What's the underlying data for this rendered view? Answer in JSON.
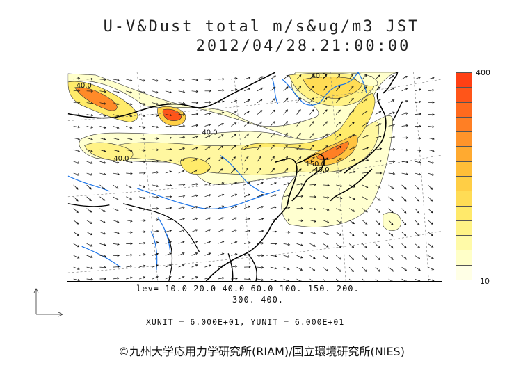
{
  "header": {
    "title": "U-V&Dust total m/s&ug/m3 JST",
    "datetime": "2012/04/28.21:00:00"
  },
  "colorbar": {
    "max_label": "400",
    "min_label": "10",
    "colors": [
      "#ffffe6",
      "#ffffc8",
      "#fffaa8",
      "#fff386",
      "#ffe96a",
      "#ffdc55",
      "#ffce45",
      "#ffbe38",
      "#ffaa30",
      "#ff942a",
      "#ff7f24",
      "#ff6a1e",
      "#ff5519",
      "#ff4014"
    ]
  },
  "map": {
    "contour_labels": [
      "40.0",
      "40.0",
      "40.0",
      "40.0",
      "150.0",
      "40.0"
    ]
  },
  "legend": {
    "lev_line1": "lev= 10.0 20.0 40.0 60.0 100. 150. 200.",
    "lev_line2": "300. 400.",
    "unit_line": "XUNIT = 6.000E+01, YUNIT = 6.000E+01"
  },
  "footer": {
    "copyright": "©九州大学応用力学研究所(RIAM)/国立環境研究所(NIES)"
  }
}
